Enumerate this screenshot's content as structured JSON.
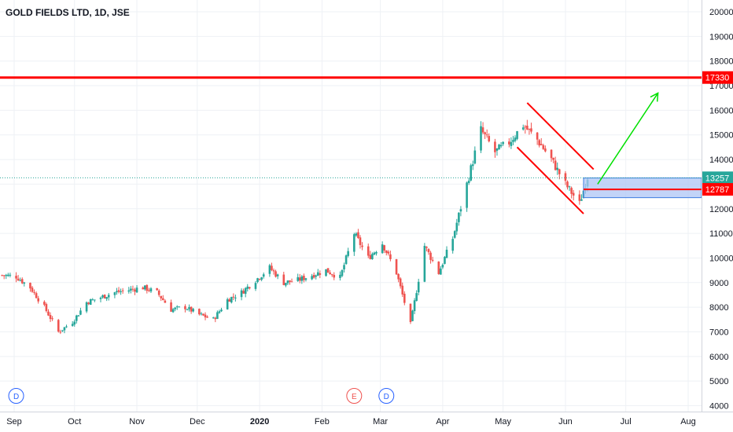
{
  "header": {
    "symbol_title": "GOLD FIELDS LTD, 1D, JSE"
  },
  "colors": {
    "up": "#26a69a",
    "down": "#ef5350",
    "grid": "#eef1f5",
    "axis_text": "#131722",
    "resistance": "#ff0000",
    "arrow": "#00e000",
    "box_fill": "#aec6f5",
    "box_border": "#3d7be0",
    "price_line": "#26a69a",
    "dividend": "#2962ff",
    "earnings": "#ef5350"
  },
  "chart_data": {
    "type": "candlestick",
    "title": "GOLD FIELDS LTD, 1D, JSE",
    "y_axis": {
      "side": "right",
      "range": [
        4000,
        20400
      ],
      "ticks": [
        4000,
        5000,
        6000,
        7000,
        8000,
        9000,
        10000,
        11000,
        12000,
        13000,
        14000,
        15000,
        16000,
        17000,
        18000,
        19000,
        20000
      ]
    },
    "x_axis": {
      "ticks": [
        "Sep",
        "Oct",
        "Nov",
        "Dec",
        "2020",
        "Feb",
        "Mar",
        "Apr",
        "May",
        "Jun",
        "Jul",
        "Aug"
      ],
      "bold_ticks": [
        "2020"
      ]
    },
    "grid": true,
    "price_series_anchors": [
      [
        "2019-08-26",
        9300
      ],
      [
        "2019-09-02",
        9250
      ],
      [
        "2019-09-09",
        8800
      ],
      [
        "2019-09-16",
        8000
      ],
      [
        "2019-09-23",
        7000
      ],
      [
        "2019-09-30",
        7400
      ],
      [
        "2019-10-07",
        8200
      ],
      [
        "2019-10-14",
        8400
      ],
      [
        "2019-10-21",
        8600
      ],
      [
        "2019-10-28",
        8700
      ],
      [
        "2019-11-04",
        8800
      ],
      [
        "2019-11-11",
        8600
      ],
      [
        "2019-11-18",
        7900
      ],
      [
        "2019-11-25",
        8000
      ],
      [
        "2019-12-02",
        7700
      ],
      [
        "2019-12-09",
        7500
      ],
      [
        "2019-12-16",
        8300
      ],
      [
        "2019-12-23",
        8600
      ],
      [
        "2019-12-30",
        9100
      ],
      [
        "2020-01-06",
        9600
      ],
      [
        "2020-01-13",
        9000
      ],
      [
        "2020-01-20",
        9100
      ],
      [
        "2020-01-27",
        9300
      ],
      [
        "2020-02-03",
        9500
      ],
      [
        "2020-02-10",
        9200
      ],
      [
        "2020-02-17",
        11000
      ],
      [
        "2020-02-24",
        10000
      ],
      [
        "2020-03-02",
        10600
      ],
      [
        "2020-03-09",
        9400
      ],
      [
        "2020-03-16",
        7300
      ],
      [
        "2020-03-23",
        10500
      ],
      [
        "2020-03-30",
        9400
      ],
      [
        "2020-04-06",
        10800
      ],
      [
        "2020-04-13",
        13000
      ],
      [
        "2020-04-20",
        15200
      ],
      [
        "2020-04-27",
        14300
      ],
      [
        "2020-05-04",
        14700
      ],
      [
        "2020-05-11",
        15400
      ],
      [
        "2020-05-18",
        14800
      ],
      [
        "2020-05-25",
        14000
      ],
      [
        "2020-06-01",
        13000
      ],
      [
        "2020-06-08",
        12200
      ],
      [
        "2020-06-12",
        13300
      ]
    ],
    "levels": [
      {
        "label": "17330",
        "value": 17330
      },
      {
        "label": "13257",
        "value": 13257
      },
      {
        "label": "12787",
        "value": 12787
      }
    ],
    "annotations": {
      "support_zone": {
        "low": 12450,
        "high": 13250,
        "from": "2020-06-10"
      },
      "channel_upper": [
        [
          "2020-05-13",
          16300
        ],
        [
          "2020-06-15",
          13600
        ]
      ],
      "channel_lower": [
        [
          "2020-05-08",
          14500
        ],
        [
          "2020-06-10",
          11800
        ]
      ],
      "breakout_arrow": [
        [
          "2020-06-17",
          13000
        ],
        [
          "2020-07-17",
          16700
        ]
      ],
      "event_markers": [
        {
          "label": "D",
          "date": "2019-09-02",
          "kind": "dividend"
        },
        {
          "label": "E",
          "date": "2020-02-17",
          "kind": "earnings"
        },
        {
          "label": "D",
          "date": "2020-03-04",
          "kind": "dividend"
        }
      ]
    }
  }
}
